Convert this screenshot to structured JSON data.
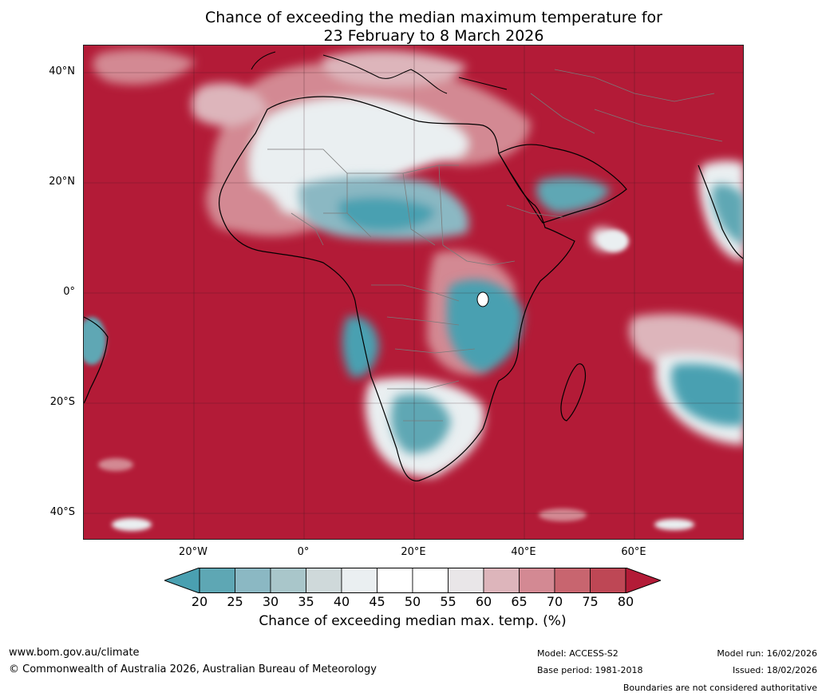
{
  "title": {
    "line1": "Chance of exceeding the median maximum temperature for",
    "line2": "23 February to 8 March 2026"
  },
  "map": {
    "region": "Africa",
    "lat_labels": [
      "40°N",
      "20°N",
      "0°",
      "20°S",
      "40°S"
    ],
    "lon_labels": [
      "20°W",
      "0°",
      "20°E",
      "40°E",
      "60°E"
    ],
    "background_color": "#b31b37"
  },
  "colorbar": {
    "ticks": [
      "20",
      "25",
      "30",
      "35",
      "40",
      "45",
      "50",
      "55",
      "60",
      "65",
      "70",
      "75",
      "80"
    ],
    "colors": [
      "#5ea7b4",
      "#8bb8c3",
      "#a9c6ca",
      "#cfd9da",
      "#eaeff1",
      "#ffffff",
      "#ffffff",
      "#e9e6e8",
      "#ddb5bb",
      "#d38993",
      "#c8656f",
      "#be4755"
    ],
    "low_color": "#4aa0b1",
    "high_color": "#b31b37",
    "label": "Chance of exceeding median max. temp. (%)"
  },
  "footer": {
    "website": "www.bom.gov.au/climate",
    "copyright": "© Commonwealth of Australia 2026, Australian Bureau of Meteorology",
    "model": "Model: ACCESS-S2",
    "base_period": "Base period: 1981-2018",
    "model_run": "Model run: 16/02/2026",
    "issued": "Issued: 18/02/2026",
    "disclaimer": "Boundaries are not considered authoritative"
  }
}
